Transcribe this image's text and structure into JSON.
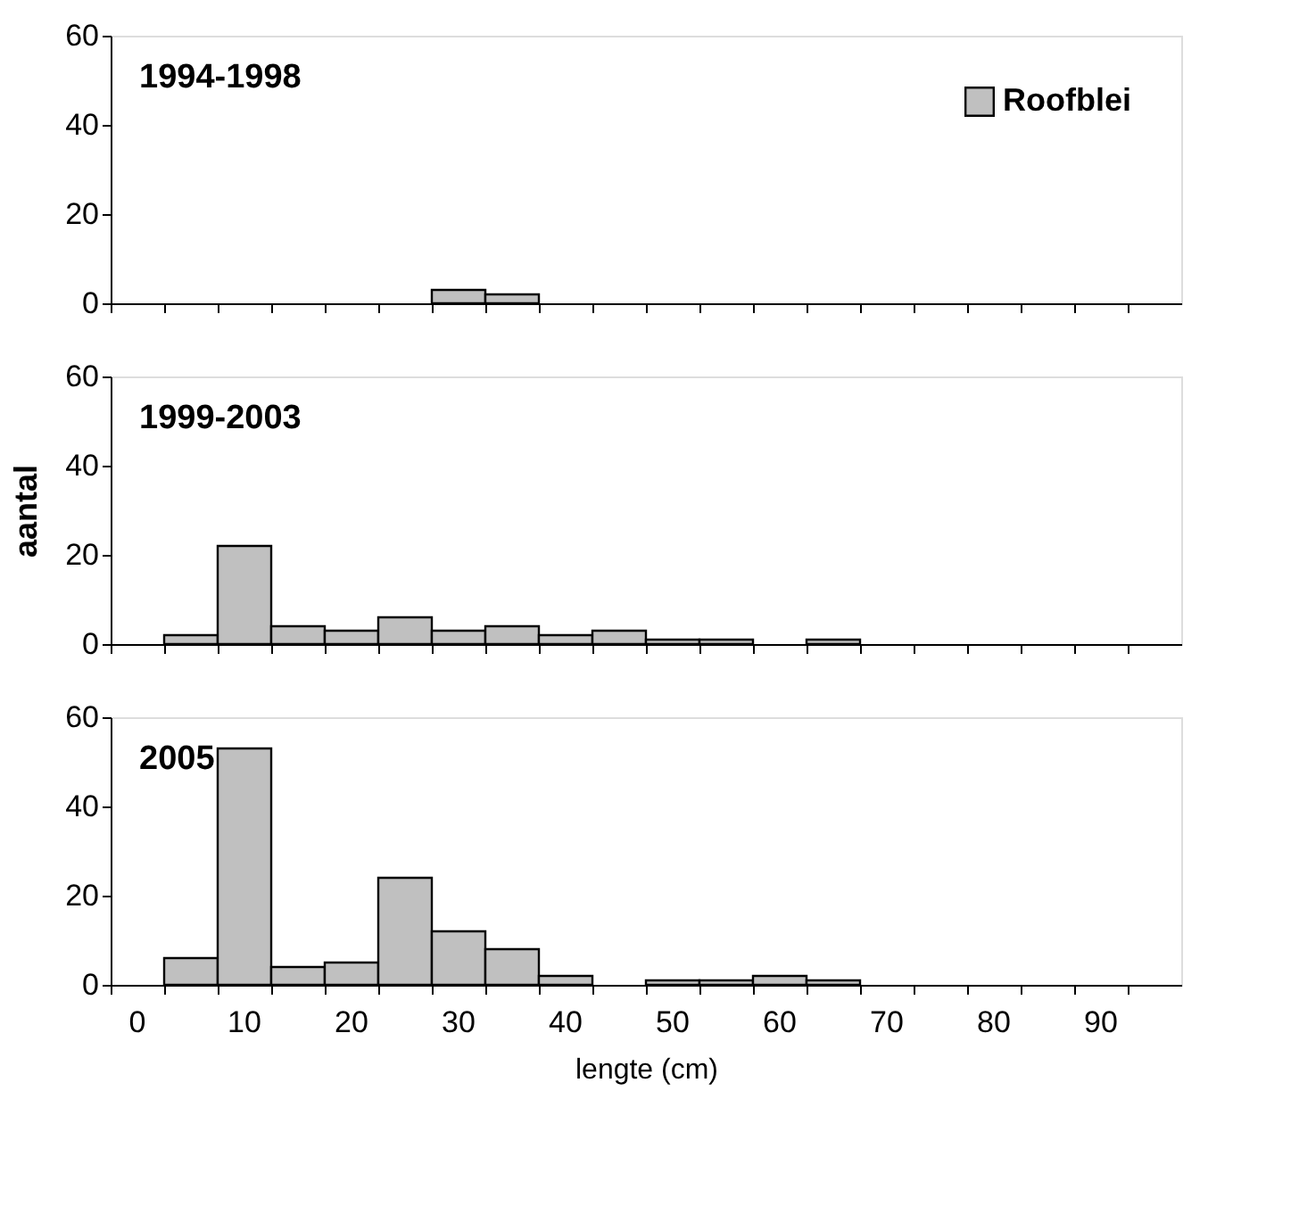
{
  "chart_data": [
    {
      "type": "bar",
      "categories": [
        "0",
        null,
        "10",
        null,
        "20",
        null,
        "30",
        null,
        "40",
        null,
        "50",
        null,
        "60",
        null,
        "70",
        null,
        "80",
        null,
        "90",
        null
      ],
      "series": [
        {
          "name": "Roofblei",
          "color": "#c0c0c0",
          "values": [
            null,
            null,
            null,
            null,
            null,
            null,
            3,
            2,
            null,
            null,
            null,
            null,
            null,
            null,
            null,
            null,
            null,
            null,
            null,
            null
          ]
        }
      ],
      "annotations": [
        "1994-1998"
      ],
      "ylim": [
        0,
        60
      ],
      "yticks": [
        0,
        20,
        40,
        60
      ],
      "grid": false,
      "legend": "top right",
      "tick_labels": "y"
    },
    {
      "type": "bar",
      "categories": [
        "0",
        null,
        "10",
        null,
        "20",
        null,
        "30",
        null,
        "40",
        null,
        "50",
        null,
        "60",
        null,
        "70",
        null,
        "80",
        null,
        "90",
        null
      ],
      "series": [
        {
          "color": "#c0c0c0",
          "values": [
            null,
            2,
            22,
            4,
            3,
            6,
            3,
            4,
            2,
            3,
            1,
            1,
            null,
            1,
            null,
            null,
            null,
            null,
            null,
            null
          ]
        }
      ],
      "annotations": [
        "1999-2003"
      ],
      "ylabel": "aantal",
      "ylim": [
        0,
        60
      ],
      "yticks": [
        0,
        20,
        40,
        60
      ],
      "grid": false,
      "tick_labels": "y"
    },
    {
      "type": "bar",
      "categories": [
        "0",
        null,
        "10",
        null,
        "20",
        null,
        "30",
        null,
        "40",
        null,
        "50",
        null,
        "60",
        null,
        "70",
        null,
        "80",
        null,
        "90",
        null
      ],
      "series": [
        {
          "color": "#c0c0c0",
          "values": [
            null,
            6,
            53,
            4,
            5,
            24,
            12,
            8,
            2,
            null,
            1,
            1,
            2,
            1,
            null,
            null,
            null,
            null,
            null,
            null
          ]
        }
      ],
      "annotations": [
        "2005"
      ],
      "xlabel": "lengte (cm)",
      "ylim": [
        0,
        60
      ],
      "yticks": [
        0,
        20,
        40,
        60
      ],
      "grid": false
    }
  ]
}
